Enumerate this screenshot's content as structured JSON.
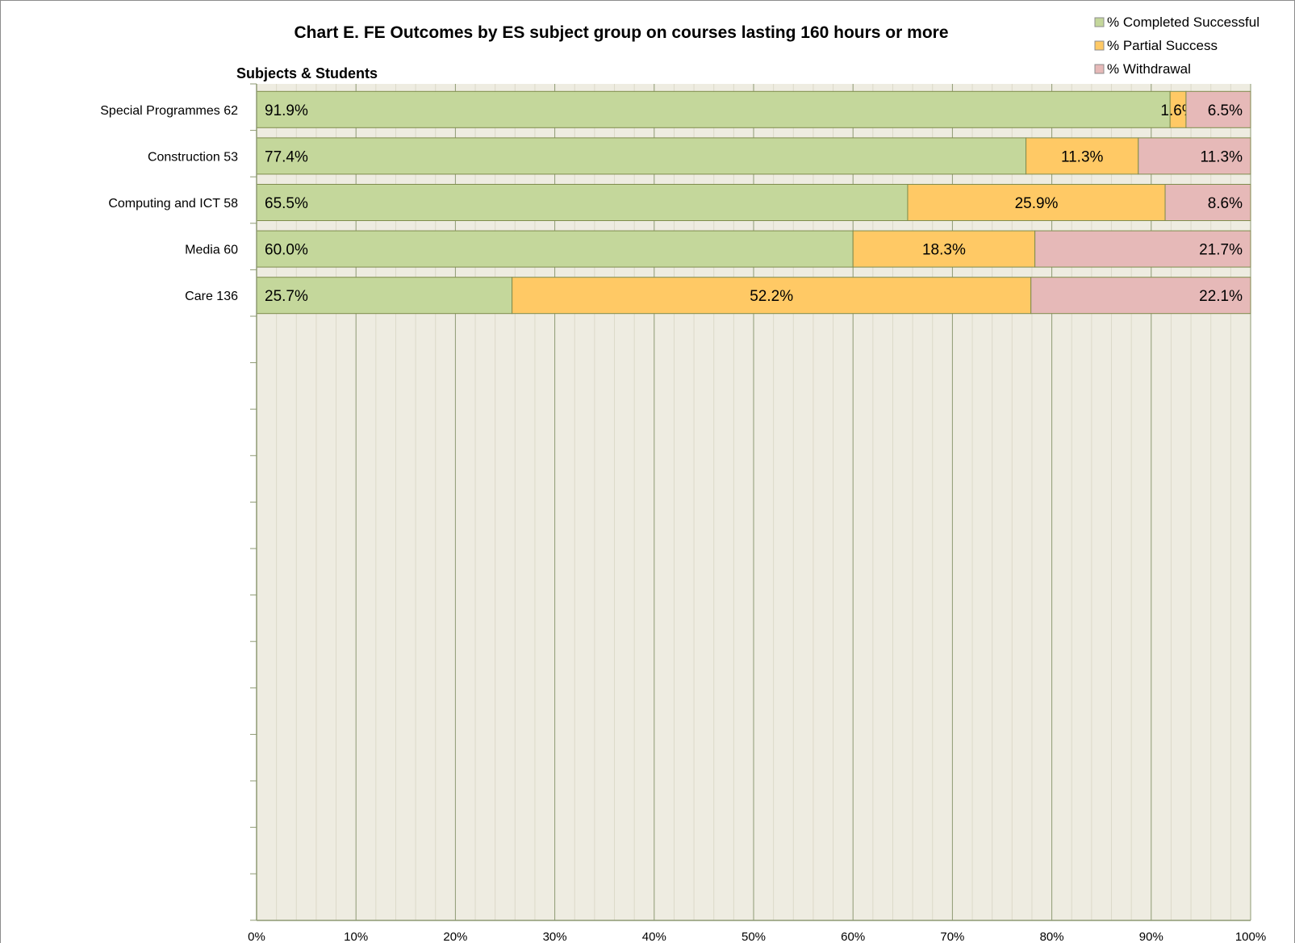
{
  "chart_data": {
    "type": "bar",
    "orientation": "horizontal",
    "stacked": true,
    "percent_stacked": true,
    "title": "Chart E. FE Outcomes by ES subject group on courses lasting 160 hours or more",
    "ylabel": "Subjects & Students",
    "xlabel": "",
    "categories": [
      "Special Programmes  62",
      "Construction  53",
      "Computing and ICT  58",
      "Media  60",
      "Care  136"
    ],
    "series": [
      {
        "name": "% Completed Successful",
        "color": "#c4d79b",
        "values": [
          91.9,
          77.4,
          65.5,
          60.0,
          25.7
        ],
        "labels": [
          "91.9%",
          "77.4%",
          "65.5%",
          "60.0%",
          "25.7%"
        ]
      },
      {
        "name": "% Partial Success",
        "color": "#ffc965",
        "values": [
          1.6,
          11.3,
          25.9,
          18.3,
          52.2
        ],
        "labels": [
          "1.6%",
          "11.3%",
          "25.9%",
          "18.3%",
          "52.2%"
        ]
      },
      {
        "name": "% Withdrawal",
        "color": "#e6b9b8",
        "values": [
          6.5,
          11.3,
          8.6,
          21.7,
          22.1
        ],
        "labels": [
          "6.5%",
          "11.3%",
          "8.6%",
          "21.7%",
          "22.1%"
        ]
      }
    ],
    "xlim": [
      0,
      100
    ],
    "xticks": [
      "0%",
      "10%",
      "20%",
      "30%",
      "40%",
      "50%",
      "60%",
      "70%",
      "80%",
      "90%",
      "100%"
    ],
    "grid": true,
    "legend": "top-right",
    "plot_background": "#eeece1",
    "gridline_color": "#8e9a73"
  }
}
